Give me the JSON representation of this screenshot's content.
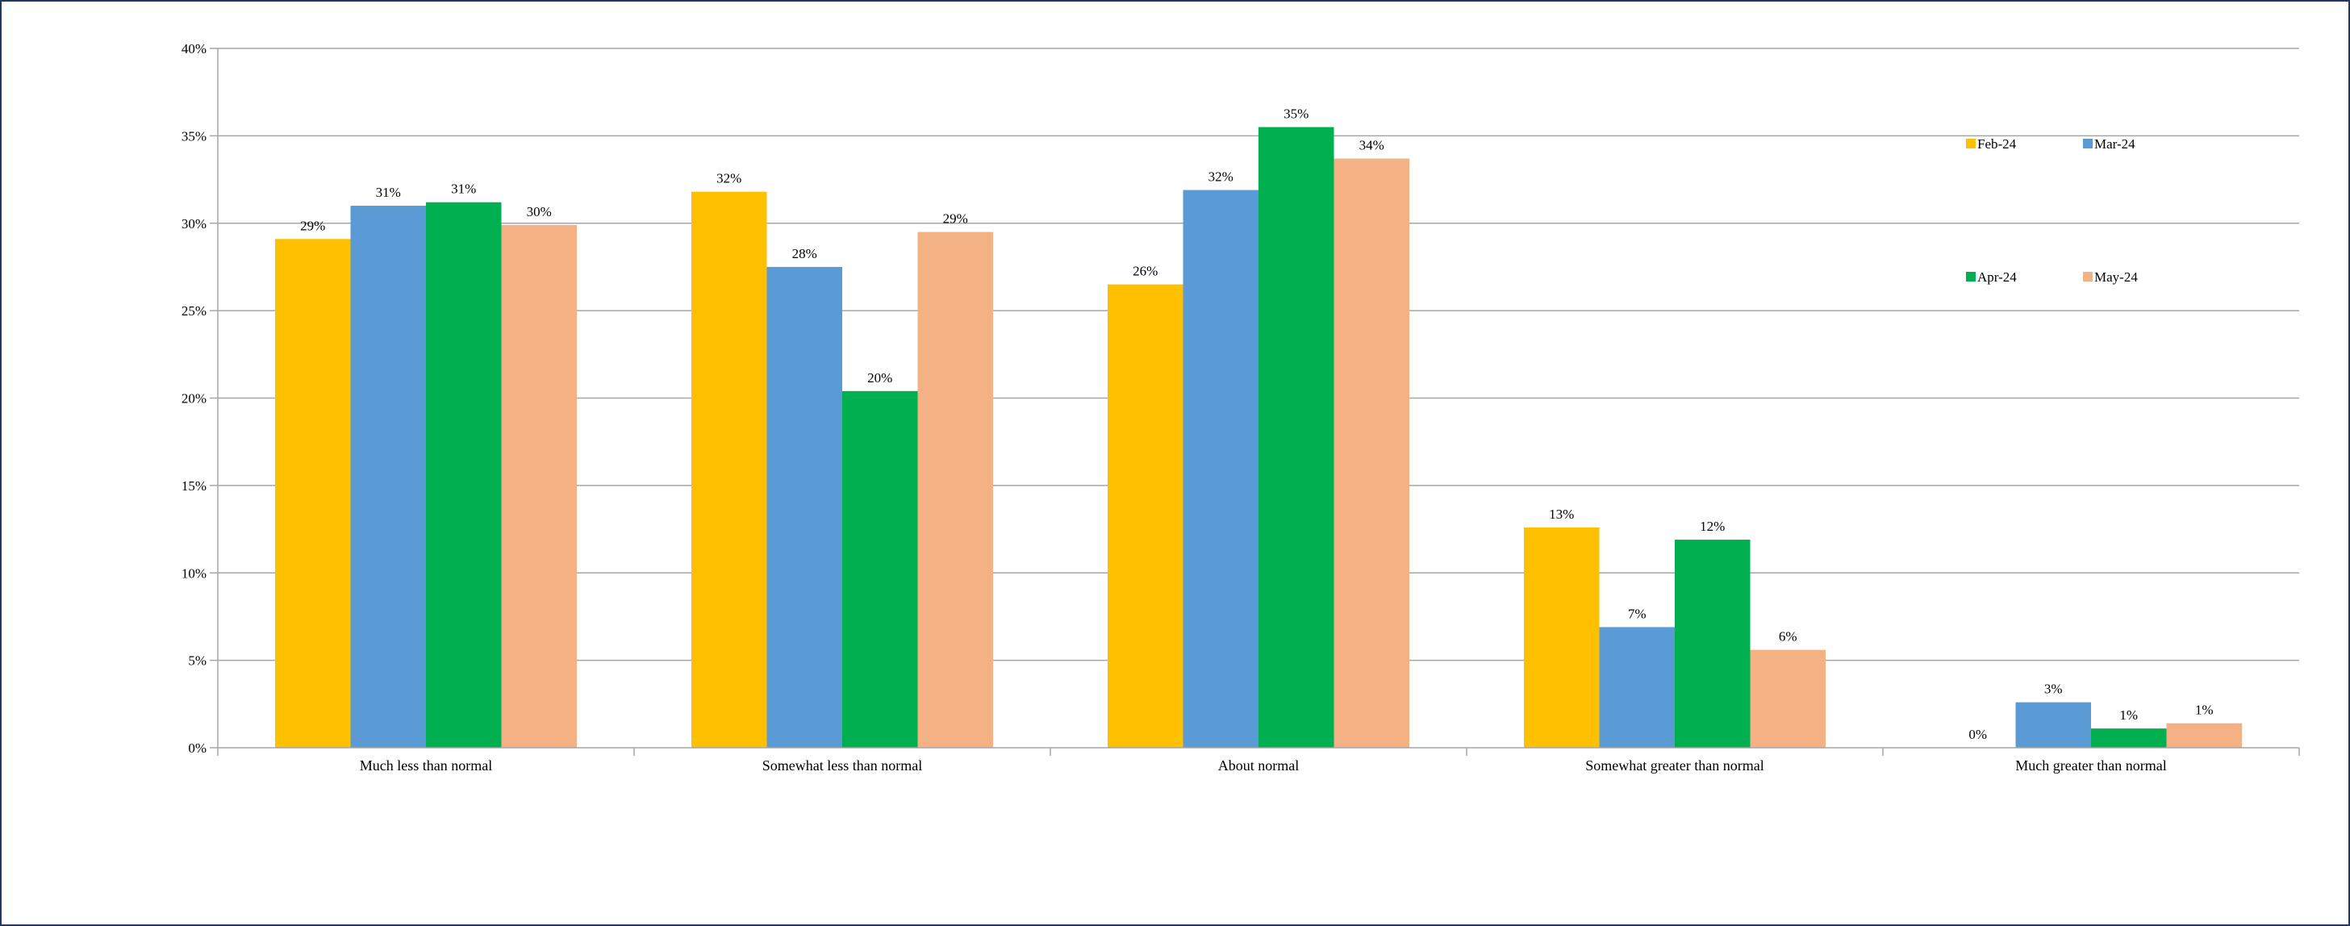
{
  "chart_data": {
    "type": "bar",
    "categories": [
      "Much less than normal",
      "Somewhat less than normal",
      "About normal",
      "Somewhat greater than normal",
      "Much greater than normal"
    ],
    "series": [
      {
        "name": "Feb-24",
        "color": "#ffc000",
        "values": [
          29.1,
          31.8,
          26.5,
          12.6,
          0.0
        ],
        "labels": [
          "29%",
          "32%",
          "26%",
          "13%",
          "0%"
        ]
      },
      {
        "name": "Mar-24",
        "color": "#5b9bd5",
        "values": [
          31.0,
          27.5,
          31.9,
          6.9,
          2.6
        ],
        "labels": [
          "31%",
          "28%",
          "32%",
          "7%",
          "3%"
        ]
      },
      {
        "name": "Apr-24",
        "color": "#00b050",
        "values": [
          31.2,
          20.4,
          35.5,
          11.9,
          1.1
        ],
        "labels": [
          "31%",
          "20%",
          "35%",
          "12%",
          "1%"
        ]
      },
      {
        "name": "May-24",
        "color": "#f4b183",
        "values": [
          29.9,
          29.5,
          33.7,
          5.6,
          1.4
        ],
        "labels": [
          "30%",
          "29%",
          "34%",
          "6%",
          "1%"
        ]
      }
    ],
    "yticks": [
      "0%",
      "5%",
      "10%",
      "15%",
      "20%",
      "25%",
      "30%",
      "35%",
      "40%"
    ],
    "ylim": [
      0,
      40
    ],
    "grid": true,
    "legend_position": "top-right",
    "title": "",
    "xlabel": "",
    "ylabel": ""
  }
}
